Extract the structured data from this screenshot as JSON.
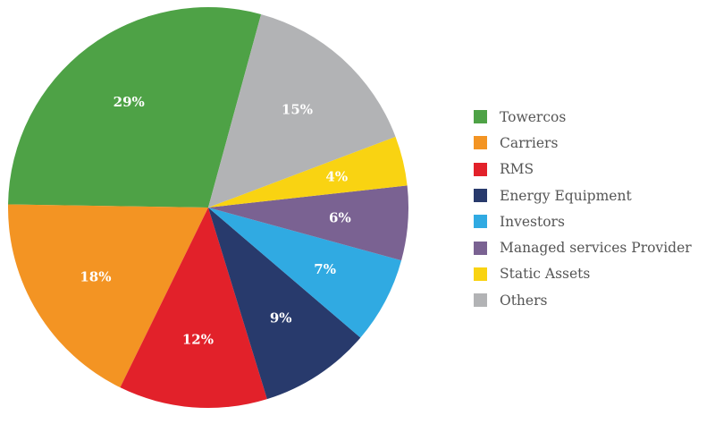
{
  "chart_data": {
    "type": "pie",
    "slices": [
      {
        "name": "Towercos",
        "value": 29,
        "label": "29%",
        "color": "#4ea246"
      },
      {
        "name": "Carriers",
        "value": 18,
        "label": "18%",
        "color": "#f39423"
      },
      {
        "name": "RMS",
        "value": 12,
        "label": "12%",
        "color": "#e2212a"
      },
      {
        "name": "Energy Equipment",
        "value": 9,
        "label": "9%",
        "color": "#283a6c"
      },
      {
        "name": "Investors",
        "value": 7,
        "label": "7%",
        "color": "#30aae2"
      },
      {
        "name": "Managed services Provider",
        "value": 6,
        "label": "6%",
        "color": "#7a6292"
      },
      {
        "name": "Static Assets",
        "value": 4,
        "label": "4%",
        "color": "#f9d312"
      },
      {
        "name": "Others",
        "value": 15,
        "label": "15%",
        "color": "#b2b3b5"
      }
    ],
    "legend_placement": "right"
  }
}
